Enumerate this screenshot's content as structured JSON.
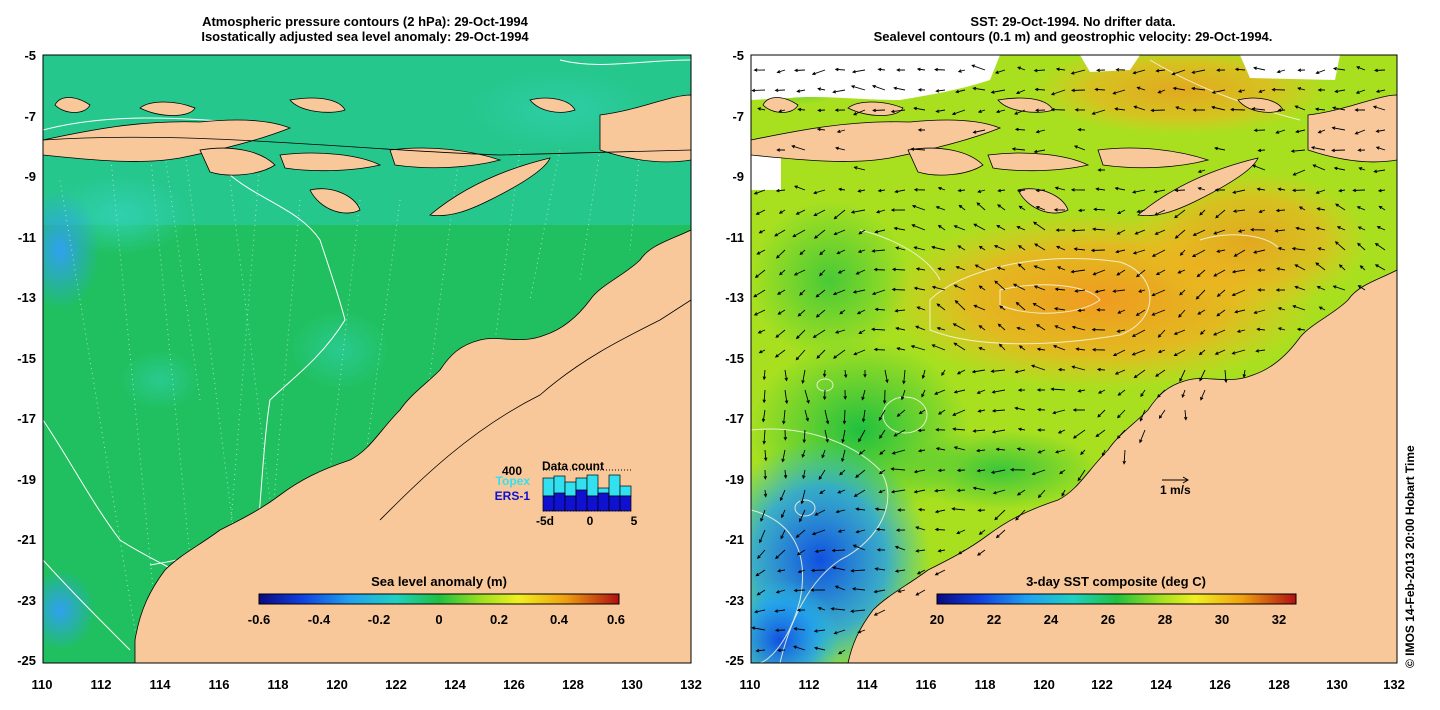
{
  "left_panel": {
    "title_line1": "Atmospheric pressure contours (2 hPa): 29-Oct-1994",
    "title_line2": "Isostatically adjusted sea level anomaly: 29-Oct-1994",
    "x_ticks": [
      "110",
      "112",
      "114",
      "116",
      "118",
      "120",
      "122",
      "124",
      "126",
      "128",
      "130",
      "132"
    ],
    "y_ticks": [
      "-5",
      "-7",
      "-9",
      "-11",
      "-13",
      "-15",
      "-17",
      "-19",
      "-21",
      "-23",
      "-25"
    ],
    "colorbar": {
      "label": "Sea level anomaly (m)",
      "ticks": [
        "-0.6",
        "-0.4",
        "-0.2",
        "0",
        "0.2",
        "0.4",
        "0.6"
      ],
      "range": [
        -0.6,
        0.6
      ]
    },
    "inset": {
      "title": "Data count",
      "max_label": "400",
      "series_topex": "Topex",
      "series_ers": "ERS-1",
      "x_ticks": [
        "-5d",
        "0",
        "5"
      ],
      "topex_color": "#33e0f0",
      "ers_color": "#1010d0"
    }
  },
  "right_panel": {
    "title_line1": "SST: 29-Oct-1994. No drifter data.",
    "title_line2": "Sealevel contours (0.1 m) and geostrophic velocity: 29-Oct-1994.",
    "x_ticks": [
      "110",
      "112",
      "114",
      "116",
      "118",
      "120",
      "122",
      "124",
      "126",
      "128",
      "130",
      "132"
    ],
    "y_ticks": [
      "-5",
      "-7",
      "-9",
      "-11",
      "-13",
      "-15",
      "-17",
      "-19",
      "-21",
      "-23",
      "-25"
    ],
    "colorbar": {
      "label": "3-day SST composite (deg C)",
      "ticks": [
        "20",
        "22",
        "24",
        "26",
        "28",
        "30",
        "32"
      ],
      "range": [
        20,
        32.6
      ]
    },
    "velocity_scale_label": "1 m/s"
  },
  "credit": "© IMOS 14-Feb-2013 20:00 Hobart Time",
  "colors": {
    "land": "#f8c89a",
    "sea_green": "#20c060",
    "sst_yellow": "#e0e020",
    "sst_orange": "#f0a020"
  }
}
